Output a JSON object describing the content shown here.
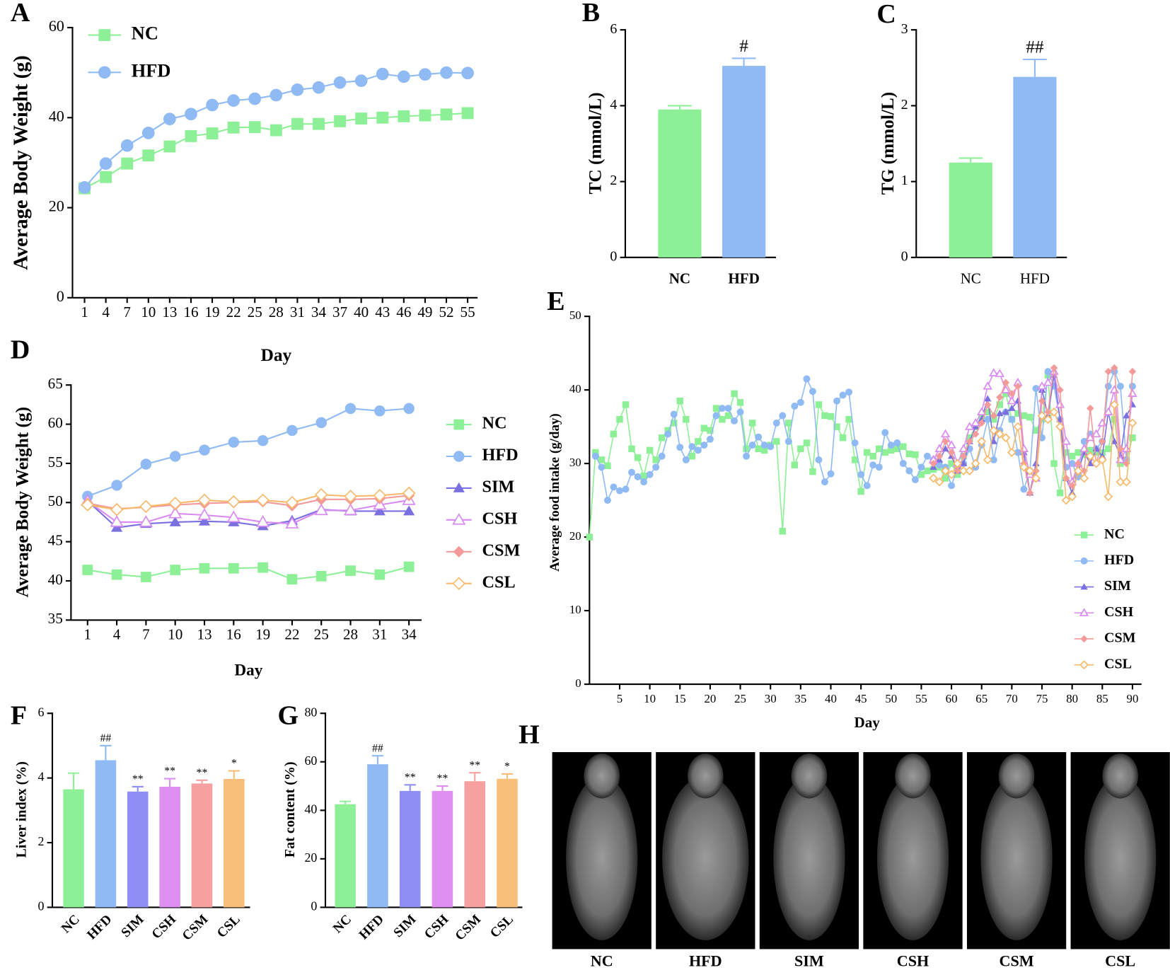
{
  "chart_data": [
    {
      "type": "line",
      "panel": "A",
      "xlabel": "Day",
      "ylabel": "Average Body Weight (g)",
      "x": [
        1,
        4,
        7,
        10,
        13,
        16,
        19,
        22,
        25,
        28,
        31,
        34,
        37,
        40,
        43,
        46,
        49,
        52,
        55
      ],
      "xlim": [
        -0.7,
        56.4
      ],
      "xticks": [
        1,
        4,
        7,
        10,
        13,
        16,
        19,
        22,
        25,
        28,
        31,
        34,
        37,
        40,
        43,
        46,
        49,
        52,
        55
      ],
      "ylim": [
        0,
        60
      ],
      "yticks": [
        0,
        20,
        40,
        60
      ],
      "legend": "upper left",
      "series": [
        {
          "name": "NC",
          "color": "#8ef096",
          "marker": "square",
          "values": [
            24.3,
            26.8,
            29.8,
            31.6,
            33.6,
            35.9,
            36.5,
            37.8,
            37.9,
            37.2,
            38.6,
            38.6,
            39.2,
            39.8,
            40.0,
            40.3,
            40.5,
            40.7,
            41.0
          ]
        },
        {
          "name": "HFD",
          "color": "#8fbaf3",
          "marker": "circle",
          "values": [
            24.5,
            29.8,
            33.8,
            36.6,
            39.7,
            40.8,
            42.8,
            43.8,
            44.2,
            45.0,
            46.2,
            46.7,
            47.8,
            48.2,
            49.7,
            49.1,
            49.6,
            50.0,
            49.9
          ]
        }
      ]
    },
    {
      "type": "bar",
      "panel": "B",
      "ylabel": "TC (mmol/L)",
      "categories": [
        "NC",
        "HFD"
      ],
      "values": [
        3.9,
        5.05
      ],
      "errors": [
        0.1,
        0.2
      ],
      "colors": [
        "#8ef096",
        "#8fbaf3"
      ],
      "annotations": [
        null,
        "#"
      ],
      "ylim": [
        0,
        6
      ],
      "yticks": [
        0,
        2,
        4,
        6
      ]
    },
    {
      "type": "bar",
      "panel": "C",
      "ylabel": "TG (mmol/L)",
      "categories": [
        "NC",
        "HFD"
      ],
      "values": [
        1.25,
        2.38
      ],
      "errors": [
        0.06,
        0.23
      ],
      "colors": [
        "#8ef096",
        "#8fbaf3"
      ],
      "annotations": [
        null,
        "##"
      ],
      "ylim": [
        0,
        3
      ],
      "yticks": [
        0,
        1,
        2,
        3
      ]
    },
    {
      "type": "line",
      "panel": "D",
      "xlabel": "Day",
      "ylabel": "Average Body Weight (g)",
      "x": [
        1,
        4,
        7,
        10,
        13,
        16,
        19,
        22,
        25,
        28,
        31,
        34
      ],
      "xlim": [
        -0.7,
        35.3
      ],
      "xticks": [
        1,
        4,
        7,
        10,
        13,
        16,
        19,
        22,
        25,
        28,
        31,
        34
      ],
      "ylim": [
        35,
        65
      ],
      "yticks": [
        35,
        40,
        45,
        50,
        55,
        60,
        65
      ],
      "legend": "right",
      "series": [
        {
          "name": "NC",
          "color": "#8ef096",
          "marker": "square",
          "values": [
            41.4,
            40.8,
            40.5,
            41.4,
            41.6,
            41.6,
            41.7,
            40.2,
            40.6,
            41.3,
            40.8,
            41.8
          ]
        },
        {
          "name": "HFD",
          "color": "#8fbaf3",
          "marker": "circle",
          "values": [
            50.8,
            52.2,
            54.9,
            55.9,
            56.7,
            57.7,
            57.9,
            59.2,
            60.2,
            62.0,
            61.7,
            62.0
          ]
        },
        {
          "name": "SIM",
          "color": "#7b70e0",
          "marker": "triangle",
          "values": [
            50.2,
            46.8,
            47.3,
            47.5,
            47.6,
            47.5,
            47.0,
            47.7,
            49.1,
            48.9,
            48.9,
            48.9
          ]
        },
        {
          "name": "CSH",
          "color": "#d98af2",
          "marker": "triangle-open",
          "values": [
            50.2,
            47.5,
            47.5,
            48.6,
            48.4,
            48.1,
            47.5,
            47.3,
            49.0,
            49.0,
            49.7,
            50.3
          ]
        },
        {
          "name": "CSM",
          "color": "#f39a9a",
          "marker": "diamond",
          "values": [
            49.9,
            49.2,
            49.4,
            49.7,
            49.9,
            50.0,
            50.1,
            49.6,
            50.4,
            50.4,
            50.5,
            50.9
          ]
        },
        {
          "name": "CSL",
          "color": "#f7b96c",
          "marker": "diamond-open",
          "values": [
            49.7,
            49.1,
            49.5,
            49.9,
            50.3,
            50.1,
            50.3,
            50.0,
            51.0,
            50.8,
            50.9,
            51.2
          ]
        }
      ]
    },
    {
      "type": "line",
      "panel": "E",
      "xlabel": "Day",
      "ylabel": "Average food intake (g/day)",
      "xlim": [
        0,
        91.5
      ],
      "xticks": [
        5,
        10,
        15,
        20,
        25,
        30,
        35,
        40,
        45,
        50,
        55,
        60,
        65,
        70,
        75,
        80,
        85,
        90
      ],
      "ylim": [
        0,
        50
      ],
      "yticks": [
        0,
        10,
        20,
        30,
        40,
        50
      ],
      "legend": "lower right",
      "series": [
        {
          "name": "NC",
          "color": "#8ef096",
          "marker": "square",
          "x": [
            0,
            1,
            2,
            3,
            4,
            5,
            6,
            7,
            8,
            9,
            10,
            11,
            12,
            13,
            14,
            15,
            16,
            17,
            18,
            19,
            20,
            21,
            22,
            23,
            24,
            25,
            26,
            27,
            28,
            29,
            30,
            31,
            32,
            33,
            34,
            35,
            36,
            37,
            38,
            39,
            40,
            41,
            42,
            43,
            44,
            45,
            46,
            47,
            48,
            49,
            50,
            51,
            52,
            53,
            54,
            55,
            56,
            57,
            58,
            59,
            60,
            61,
            62,
            63,
            64,
            65,
            66,
            67,
            68,
            69,
            70,
            71,
            72,
            73,
            74,
            75,
            76,
            77,
            78,
            79,
            80,
            81,
            82,
            83,
            84,
            85,
            86,
            87,
            88,
            89,
            90
          ],
          "values": [
            20,
            31.5,
            30.5,
            29.7,
            34,
            36,
            38,
            32,
            30.8,
            28.3,
            31.8,
            30.5,
            33.5,
            34.5,
            35.5,
            38.5,
            36,
            31,
            33,
            34.8,
            34.5,
            37.5,
            36,
            36.5,
            39.5,
            38.3,
            32,
            35.5,
            32,
            31.8,
            32.5,
            33,
            20.8,
            35.5,
            29.8,
            32,
            32.8,
            28.9,
            38,
            36.5,
            36.4,
            35,
            33.5,
            36,
            30.5,
            26.2,
            31.5,
            31,
            32,
            31.5,
            31.8,
            32,
            32.3,
            31.3,
            31.2,
            28.5,
            29,
            29.2,
            29.5,
            28,
            30,
            28.5,
            31,
            33.5,
            35,
            36.5,
            37,
            36,
            38,
            39.5,
            36,
            36.8,
            36.5,
            36.3,
            34.5,
            36,
            42,
            30,
            26,
            31.5,
            31,
            31.5,
            31.2,
            31.8,
            31.5,
            31.5,
            32,
            36,
            30,
            30.5,
            33.5
          ]
        },
        {
          "name": "HFD",
          "color": "#8fbaf3",
          "marker": "circle",
          "x": [
            1,
            2,
            3,
            4,
            5,
            6,
            7,
            8,
            9,
            10,
            11,
            12,
            13,
            14,
            15,
            16,
            17,
            18,
            19,
            20,
            21,
            22,
            23,
            24,
            25,
            26,
            27,
            28,
            29,
            30,
            31,
            32,
            33,
            34,
            35,
            36,
            37,
            38,
            39,
            40,
            41,
            42,
            43,
            44,
            45,
            46,
            47,
            48,
            49,
            50,
            51,
            52,
            53,
            54,
            55,
            56,
            57,
            58,
            59,
            60,
            61,
            62,
            63,
            64,
            65,
            66,
            67,
            68,
            69,
            70,
            71,
            72,
            73,
            74,
            75,
            76,
            77,
            78,
            79,
            80,
            81,
            82,
            83,
            84,
            85,
            86,
            87,
            88,
            89,
            90
          ],
          "values": [
            31,
            29.5,
            25,
            26.8,
            26.3,
            26.5,
            28.8,
            28.2,
            27.5,
            28.5,
            29.5,
            31,
            34,
            36.7,
            32.2,
            30.5,
            32.3,
            31.8,
            32.5,
            33.3,
            36.5,
            37.5,
            37.5,
            35.8,
            37,
            31,
            32.5,
            33.6,
            32.5,
            32.3,
            35.5,
            36.5,
            33,
            37.8,
            38.3,
            41.5,
            39.8,
            30.5,
            27.5,
            28.6,
            38.5,
            39.3,
            39.7,
            32.8,
            28.5,
            27,
            29.8,
            29.5,
            34.2,
            32.5,
            32.8,
            30,
            29,
            27.8,
            29.5,
            31,
            30.5,
            29.8,
            29.5,
            27,
            29.5,
            30,
            32,
            29.5,
            32.5,
            36,
            30.5,
            34.5,
            37,
            36,
            31.5,
            26.5,
            29,
            40.2,
            33.5,
            42.5,
            40.5,
            36,
            29.5,
            30,
            28.2,
            33,
            34,
            32,
            33,
            40.5,
            42.5,
            40.5,
            30.5,
            40.5
          ]
        },
        {
          "name": "SIM",
          "color": "#7b70e0",
          "marker": "triangle",
          "x": [
            57,
            58,
            59,
            60,
            61,
            62,
            63,
            64,
            65,
            66,
            67,
            68,
            69,
            70,
            71,
            72,
            73,
            74,
            75,
            76,
            77,
            78,
            79,
            80,
            81,
            82,
            83,
            84,
            85,
            86,
            87,
            88,
            89,
            90
          ],
          "values": [
            29.5,
            30.5,
            32,
            31,
            29,
            30,
            33,
            35,
            36,
            38.8,
            33,
            36.8,
            37,
            37.5,
            38.5,
            31.5,
            26,
            30,
            40,
            36.5,
            42,
            36,
            28,
            26,
            29,
            31.5,
            30,
            32,
            31,
            37,
            33,
            31,
            36.5,
            38
          ]
        },
        {
          "name": "CSH",
          "color": "#d98af2",
          "marker": "triangle-open",
          "x": [
            57,
            58,
            59,
            60,
            61,
            62,
            63,
            64,
            65,
            66,
            67,
            68,
            69,
            70,
            71,
            72,
            73,
            74,
            75,
            76,
            77,
            78,
            79,
            80,
            81,
            82,
            83,
            84,
            85,
            86,
            87,
            88,
            89,
            90
          ],
          "values": [
            30.5,
            32,
            34,
            32.5,
            30,
            32,
            35,
            35.5,
            37,
            40.5,
            42.3,
            42.2,
            40,
            38.5,
            41,
            32,
            28.5,
            28,
            40.5,
            41,
            42.5,
            38,
            33,
            27.5,
            30,
            32,
            33.5,
            34,
            35.5,
            37,
            40,
            30.5,
            32,
            39.5
          ]
        },
        {
          "name": "CSM",
          "color": "#f39a9a",
          "marker": "diamond",
          "x": [
            57,
            58,
            59,
            60,
            61,
            62,
            63,
            64,
            65,
            66,
            67,
            68,
            69,
            70,
            71,
            72,
            73,
            74,
            75,
            76,
            77,
            78,
            79,
            80,
            81,
            82,
            83,
            84,
            85,
            86,
            87,
            88,
            89,
            90
          ],
          "values": [
            30,
            31,
            33,
            31.5,
            29,
            31,
            33,
            34,
            35.5,
            38,
            36.5,
            39,
            41,
            39.5,
            40.5,
            30,
            26,
            29,
            38.5,
            37,
            43,
            40,
            28,
            27,
            30,
            29,
            37.5,
            30,
            33,
            42.5,
            43,
            32,
            30,
            42.5
          ]
        },
        {
          "name": "CSL",
          "color": "#f7b96c",
          "marker": "diamond-open",
          "x": [
            57,
            58,
            59,
            60,
            61,
            62,
            63,
            64,
            65,
            66,
            67,
            68,
            69,
            70,
            71,
            72,
            73,
            74,
            75,
            76,
            77,
            78,
            79,
            80,
            81,
            82,
            83,
            84,
            85,
            86,
            87,
            88,
            89,
            90
          ],
          "values": [
            28,
            27.5,
            29,
            28.5,
            30,
            29,
            29,
            30,
            33,
            30.5,
            34.5,
            34,
            33.5,
            31.5,
            35,
            29.5,
            29,
            28,
            36.5,
            36,
            37,
            35,
            25,
            25.5,
            29,
            28,
            31,
            30,
            30.5,
            25.5,
            38,
            27.5,
            27.5,
            35.5
          ]
        }
      ]
    },
    {
      "type": "bar",
      "panel": "F",
      "ylabel": "Liver index (%)",
      "categories": [
        "NC",
        "HFD",
        "SIM",
        "CSH",
        "CSM",
        "CSL"
      ],
      "values": [
        3.65,
        4.55,
        3.58,
        3.73,
        3.83,
        3.97
      ],
      "errors": [
        0.5,
        0.45,
        0.15,
        0.25,
        0.1,
        0.25
      ],
      "colors": [
        "#8ef096",
        "#8fbaf3",
        "#8e8ef5",
        "#df8ef2",
        "#f7a0a0",
        "#f9bf7a"
      ],
      "annotations": [
        null,
        "##",
        "**",
        "**",
        "**",
        "*"
      ],
      "ylim": [
        0,
        6
      ],
      "yticks": [
        0,
        2,
        4,
        6
      ]
    },
    {
      "type": "bar",
      "panel": "G",
      "ylabel": "Fat content (%)",
      "categories": [
        "NC",
        "HFD",
        "SIM",
        "CSH",
        "CSM",
        "CSL"
      ],
      "values": [
        42.5,
        59,
        48,
        48,
        52,
        53
      ],
      "errors": [
        1.2,
        3.5,
        2.5,
        2,
        3.5,
        2
      ],
      "colors": [
        "#8ef096",
        "#8fbaf3",
        "#8e8ef5",
        "#df8ef2",
        "#f7a0a0",
        "#f9bf7a"
      ],
      "annotations": [
        null,
        "##",
        "**",
        "**",
        "**",
        "*"
      ],
      "ylim": [
        0,
        80
      ],
      "yticks": [
        0,
        20,
        40,
        60,
        80
      ]
    }
  ],
  "images": {
    "panel": "H",
    "labels": [
      "NC",
      "HFD",
      "SIM",
      "CSH",
      "CSM",
      "CSL"
    ]
  }
}
